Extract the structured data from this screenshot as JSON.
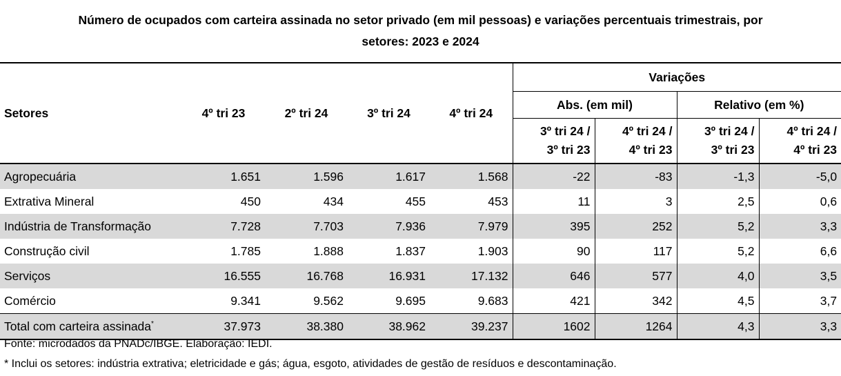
{
  "title_line1": "Número de ocupados com carteira assinada no setor privado (em mil pessoas) e variações percentuais trimestrais, por",
  "title_line2": "setores:  2023 e 2024",
  "header": {
    "setores": "Setores",
    "col1": "4º tri 23",
    "col2": "2º tri 24",
    "col3": "3º tri 24",
    "col4": "4º tri 24",
    "variacoes": "Variações",
    "abs": "Abs. (em mil)",
    "relativo": "Relativo (em %)",
    "v1_l1": "3º tri 24 /",
    "v1_l2": "3º tri 23",
    "v2_l1": "4º tri 24 /",
    "v2_l2": "4º tri 23",
    "v3_l1": "3º tri 24 /",
    "v3_l2": "3º tri 23",
    "v4_l1": "4º tri 24 /",
    "v4_l2": "4º tri 23"
  },
  "rows": [
    {
      "setor": "Agropecuária",
      "c1": "1.651",
      "c2": "1.596",
      "c3": "1.617",
      "c4": "1.568",
      "abs1": "-22",
      "abs2": "-83",
      "rel1": "-1,3",
      "rel2": "-5,0"
    },
    {
      "setor": "Extrativa Mineral",
      "c1": "450",
      "c2": "434",
      "c3": "455",
      "c4": "453",
      "abs1": "11",
      "abs2": "3",
      "rel1": "2,5",
      "rel2": "0,6"
    },
    {
      "setor": "Indústria de Transformação",
      "c1": "7.728",
      "c2": "7.703",
      "c3": "7.936",
      "c4": "7.979",
      "abs1": "395",
      "abs2": "252",
      "rel1": "5,2",
      "rel2": "3,3"
    },
    {
      "setor": "Construção civil",
      "c1": "1.785",
      "c2": "1.888",
      "c3": "1.837",
      "c4": "1.903",
      "abs1": "90",
      "abs2": "117",
      "rel1": "5,2",
      "rel2": "6,6"
    },
    {
      "setor": "Serviços",
      "c1": "16.555",
      "c2": "16.768",
      "c3": "16.931",
      "c4": "17.132",
      "abs1": "646",
      "abs2": "577",
      "rel1": "4,0",
      "rel2": "3,5"
    },
    {
      "setor": "Comércio",
      "c1": "9.341",
      "c2": "9.562",
      "c3": "9.695",
      "c4": "9.683",
      "abs1": "421",
      "abs2": "342",
      "rel1": "4,5",
      "rel2": "3,7"
    }
  ],
  "total": {
    "setor": "Total com carteira assinada",
    "mark": "*",
    "c1": "37.973",
    "c2": "38.380",
    "c3": "38.962",
    "c4": "39.237",
    "abs1": "1602",
    "abs2": "1264",
    "rel1": "4,3",
    "rel2": "3,3"
  },
  "footnote1": "Fonte: microdados da PNADc/IBGE. Elaboração: IEDI.",
  "footnote2": "* Inclui os setores: indústria extrativa; eletricidade e gás; água, esgoto, atividades de gestão de resíduos e descontaminação."
}
